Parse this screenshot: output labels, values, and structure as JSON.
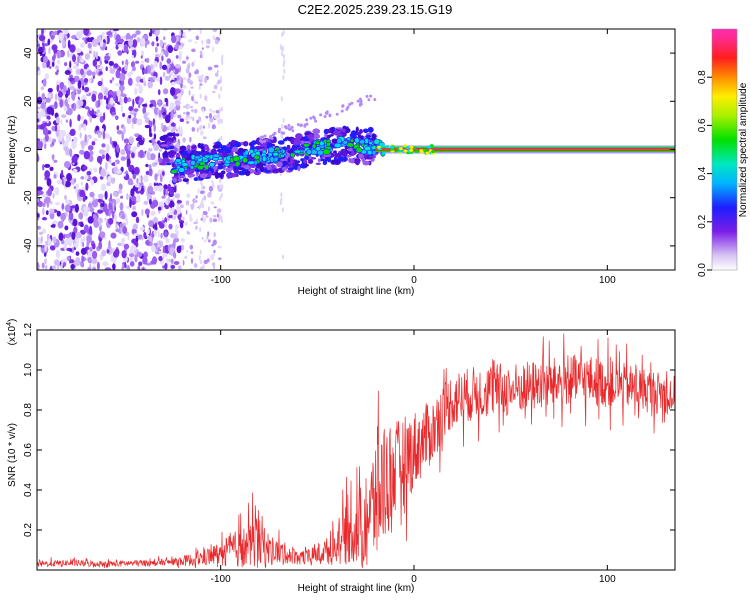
{
  "title": "C2E2.2025.239.23.15.G19",
  "colors": {
    "series": "#e8282a",
    "spectrogram_low": "#6a1ee0",
    "ridge": "#2a8a2a",
    "axis": "#000000"
  },
  "chart_data": [
    {
      "type": "heatmap",
      "title": "C2E2.2025.239.23.15.G19",
      "xlabel": "Height of straight line (km)",
      "ylabel": "Frequency (Hz)",
      "xlim": [
        -195,
        135
      ],
      "ylim": [
        -50,
        50
      ],
      "xticks": [
        -100,
        0,
        100
      ],
      "xtick_labels": [
        "-100",
        "0",
        "100"
      ],
      "yticks": [
        -40,
        -20,
        0,
        20,
        40
      ],
      "ytick_labels": [
        "-40",
        "-20",
        "0",
        "20",
        "40"
      ],
      "colorbar": {
        "label": "Normalized spectral amplitude",
        "range": [
          0,
          1
        ],
        "ticks": [
          0.0,
          0.2,
          0.4,
          0.6,
          0.8
        ],
        "tick_labels": [
          "0.0",
          "0.2",
          "0.4",
          "0.6",
          "0.8"
        ]
      },
      "features": {
        "noise_region_x": [
          -195,
          -120
        ],
        "sparse_noise_x": [
          -120,
          -100
        ],
        "ridge_points": [
          [
            -125,
            -7
          ],
          [
            -110,
            -5
          ],
          [
            -95,
            -4
          ],
          [
            -80,
            -3
          ],
          [
            -65,
            -2
          ],
          [
            -50,
            1
          ],
          [
            -35,
            2
          ],
          [
            -20,
            1
          ],
          [
            -10,
            0
          ],
          [
            0,
            0
          ],
          [
            20,
            0
          ],
          [
            60,
            0
          ],
          [
            100,
            0
          ],
          [
            135,
            0
          ]
        ],
        "dispersed_band_x": [
          -130,
          -20
        ],
        "steady_line_x": [
          -20,
          135
        ],
        "steady_line_freq": 0
      }
    },
    {
      "type": "line",
      "xlabel": "Height of straight line (km)",
      "ylabel": "SNR (10 * v/v)",
      "y_exponent_label": "(x10",
      "y_exponent": "4",
      "xlim": [
        -195,
        135
      ],
      "ylim": [
        0.0,
        1.2
      ],
      "xticks": [
        -100,
        0,
        100
      ],
      "xtick_labels": [
        "-100",
        "0",
        "100"
      ],
      "yticks": [
        0.2,
        0.4,
        0.6,
        0.8,
        1.0,
        1.2
      ],
      "ytick_labels": [
        "0.2",
        "0.4",
        "0.6",
        "0.8",
        "1.0",
        "1.2"
      ],
      "series": [
        {
          "name": "SNR",
          "x": [
            -195,
            -180,
            -160,
            -140,
            -125,
            -115,
            -105,
            -95,
            -85,
            -80,
            -75,
            -65,
            -55,
            -45,
            -40,
            -35,
            -28,
            -22,
            -18,
            -15,
            -10,
            -5,
            0,
            5,
            10,
            15,
            20,
            30,
            40,
            50,
            60,
            70,
            80,
            90,
            100,
            110,
            120,
            130,
            135
          ],
          "mean": [
            0.03,
            0.035,
            0.03,
            0.035,
            0.04,
            0.05,
            0.07,
            0.1,
            0.12,
            0.15,
            0.1,
            0.08,
            0.06,
            0.1,
            0.12,
            0.18,
            0.22,
            0.3,
            0.4,
            0.45,
            0.5,
            0.55,
            0.6,
            0.65,
            0.7,
            0.8,
            0.85,
            0.88,
            0.9,
            0.9,
            0.92,
            0.93,
            0.95,
            0.95,
            0.93,
            0.92,
            0.9,
            0.88,
            0.87
          ],
          "spread": [
            0.02,
            0.02,
            0.02,
            0.02,
            0.02,
            0.04,
            0.06,
            0.1,
            0.15,
            0.2,
            0.1,
            0.06,
            0.05,
            0.08,
            0.12,
            0.18,
            0.25,
            0.35,
            0.45,
            0.4,
            0.3,
            0.28,
            0.25,
            0.22,
            0.2,
            0.18,
            0.18,
            0.17,
            0.17,
            0.17,
            0.16,
            0.16,
            0.16,
            0.16,
            0.15,
            0.14,
            0.14,
            0.13,
            0.13
          ]
        }
      ]
    }
  ]
}
